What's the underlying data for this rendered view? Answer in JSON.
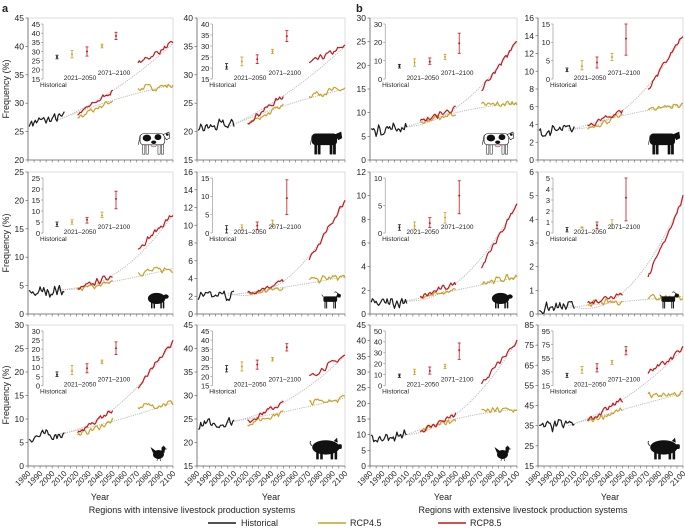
{
  "figure": {
    "panel_labels": [
      "a",
      "b"
    ],
    "ylabel": "Frequency (%)",
    "xlabel": "Year",
    "group_titles": [
      "Regions with intensive livestock production systems",
      "Regions with extensive livestock production systems"
    ],
    "inset_labels": {
      "historical": "Historical",
      "near": "2021–2050",
      "far": "2071–2100"
    },
    "legend": [
      {
        "name": "Historical",
        "color": "#1a1a1a"
      },
      {
        "name": "RCP4.5",
        "color": "#c9a227"
      },
      {
        "name": "RCP8.5",
        "color": "#c4161c"
      }
    ]
  },
  "colors": {
    "historical": "#1a1a1a",
    "rcp45": "#c9a227",
    "rcp85": "#c4161c",
    "trend": "#bdbdbd"
  },
  "x_axis": {
    "range": [
      1980,
      2100
    ],
    "tick_labels": [
      "1980",
      "1990",
      "2000",
      "2010",
      "2020",
      "2030",
      "2040",
      "2050",
      "2060",
      "2070",
      "2080",
      "2090",
      "2100"
    ]
  },
  "chart_data": [
    {
      "type": "line",
      "group": "a",
      "animal": "dairy-cattle",
      "ylim": [
        20,
        45
      ],
      "yticks": [
        20,
        25,
        30,
        35,
        40,
        45
      ],
      "historical": [
        [
          1981,
          26.5
        ],
        [
          2010,
          27.5
        ]
      ],
      "rcp45": {
        "near": [
          [
            2021,
            27.5
          ],
          [
            2050,
            30.5
          ]
        ],
        "far": [
          [
            2071,
            32.5
          ],
          [
            2100,
            33.2
          ]
        ]
      },
      "rcp85": {
        "near": [
          [
            2021,
            28
          ],
          [
            2050,
            32.2
          ]
        ],
        "far": [
          [
            2071,
            37
          ],
          [
            2100,
            40.5
          ]
        ]
      },
      "inset": {
        "ylim": [
          15,
          45
        ],
        "yticks": [
          15,
          20,
          25,
          30,
          35,
          40,
          45
        ],
        "historical": [
          27,
          26,
          28
        ],
        "rcp45_near": [
          28.5,
          26.5,
          30.5
        ],
        "rcp85_near": [
          30,
          27.5,
          32.5
        ],
        "rcp45_far": [
          33,
          32,
          34
        ],
        "rcp85_far": [
          38.5,
          36.5,
          40.5
        ]
      }
    },
    {
      "type": "line",
      "group": "a",
      "animal": "beef-cattle",
      "ylim": [
        15,
        40
      ],
      "yticks": [
        15,
        20,
        25,
        30,
        35,
        40
      ],
      "historical": [
        [
          1981,
          20.5
        ],
        [
          2010,
          21.3
        ]
      ],
      "rcp45": {
        "near": [
          [
            2021,
            21.5
          ],
          [
            2050,
            24.5
          ]
        ],
        "far": [
          [
            2071,
            26.5
          ],
          [
            2100,
            27.5
          ]
        ]
      },
      "rcp85": {
        "near": [
          [
            2021,
            21.7
          ],
          [
            2050,
            26.3
          ]
        ],
        "far": [
          [
            2071,
            32
          ],
          [
            2100,
            35
          ]
        ]
      },
      "inset": {
        "ylim": [
          15,
          40
        ],
        "yticks": [
          15,
          20,
          25,
          30,
          35,
          40
        ],
        "historical": [
          20.5,
          19.5,
          22
        ],
        "rcp45_near": [
          23,
          21,
          25
        ],
        "rcp85_near": [
          24,
          22,
          26
        ],
        "rcp45_far": [
          27.5,
          26.5,
          28.5
        ],
        "rcp85_far": [
          34.5,
          32,
          37
        ]
      }
    },
    {
      "type": "line",
      "group": "a",
      "animal": "sheep",
      "ylim": [
        0,
        25
      ],
      "yticks": [
        0,
        5,
        10,
        15,
        20,
        25
      ],
      "historical": [
        [
          1981,
          3.7
        ],
        [
          2010,
          4.3
        ]
      ],
      "rcp45": {
        "near": [
          [
            2021,
            4.3
          ],
          [
            2050,
            5.7
          ]
        ],
        "far": [
          [
            2071,
            7.3
          ],
          [
            2100,
            8
          ]
        ]
      },
      "rcp85": {
        "near": [
          [
            2021,
            4.3
          ],
          [
            2050,
            6.8
          ]
        ],
        "far": [
          [
            2071,
            11.5
          ],
          [
            2100,
            17.5
          ]
        ]
      },
      "inset": {
        "ylim": [
          0,
          25
        ],
        "yticks": [
          0,
          5,
          10,
          15,
          20,
          25
        ],
        "historical": [
          4,
          3,
          5
        ],
        "rcp45_near": [
          5,
          4,
          6
        ],
        "rcp85_near": [
          6,
          4.5,
          7
        ],
        "rcp45_far": [
          8,
          7,
          9.5
        ],
        "rcp85_far": [
          15.5,
          11,
          19
        ]
      }
    },
    {
      "type": "line",
      "group": "a",
      "animal": "goat",
      "ylim": [
        0,
        16
      ],
      "yticks": [
        0,
        2,
        4,
        6,
        8,
        10,
        12,
        14,
        16
      ],
      "historical": [
        [
          1981,
          1.8
        ],
        [
          2010,
          2.2
        ]
      ],
      "rcp45": {
        "near": [
          [
            2021,
            2.2
          ],
          [
            2050,
            3.0
          ]
        ],
        "far": [
          [
            2071,
            3.8
          ],
          [
            2100,
            4.2
          ]
        ]
      },
      "rcp85": {
        "near": [
          [
            2021,
            2.3
          ],
          [
            2050,
            3.7
          ]
        ],
        "far": [
          [
            2071,
            6
          ],
          [
            2100,
            12.8
          ]
        ]
      },
      "inset": {
        "ylim": [
          0,
          15
        ],
        "yticks": [
          0,
          5,
          10,
          15
        ],
        "historical": [
          1,
          0,
          2
        ],
        "rcp45_near": [
          1.5,
          0.8,
          2.2
        ],
        "rcp85_near": [
          2,
          1,
          3
        ],
        "rcp45_far": [
          2.5,
          1.8,
          3.5
        ],
        "rcp85_far": [
          9.5,
          5,
          14.5
        ]
      }
    },
    {
      "type": "line",
      "group": "a",
      "animal": "chicken",
      "ylim": [
        0,
        30
      ],
      "yticks": [
        0,
        5,
        10,
        15,
        20,
        25,
        30
      ],
      "historical": [
        [
          1981,
          6
        ],
        [
          2010,
          7
        ]
      ],
      "rcp45": {
        "near": [
          [
            2021,
            6.5
          ],
          [
            2050,
            9.5
          ]
        ],
        "far": [
          [
            2071,
            12.5
          ],
          [
            2100,
            13.5
          ]
        ]
      },
      "rcp85": {
        "near": [
          [
            2021,
            7
          ],
          [
            2050,
            12
          ]
        ],
        "far": [
          [
            2071,
            16.5
          ],
          [
            2100,
            26.5
          ]
        ]
      },
      "inset": {
        "ylim": [
          0,
          30
        ],
        "yticks": [
          0,
          5,
          10,
          15,
          20,
          25,
          30
        ],
        "historical": [
          6,
          5,
          7.5
        ],
        "rcp45_near": [
          8,
          6,
          11
        ],
        "rcp85_near": [
          9.5,
          7,
          12
        ],
        "rcp45_far": [
          13,
          12,
          14
        ],
        "rcp85_far": [
          20.5,
          17,
          24
        ]
      }
    },
    {
      "type": "line",
      "group": "a",
      "animal": "pig",
      "ylim": [
        15,
        45
      ],
      "yticks": [
        15,
        20,
        25,
        30,
        35,
        40,
        45
      ],
      "historical": [
        [
          1981,
          23.5
        ],
        [
          2010,
          24.5
        ]
      ],
      "rcp45": {
        "near": [
          [
            2021,
            24
          ],
          [
            2050,
            26.5
          ]
        ],
        "far": [
          [
            2071,
            28.5
          ],
          [
            2100,
            29.5
          ]
        ]
      },
      "rcp85": {
        "near": [
          [
            2021,
            24.5
          ],
          [
            2050,
            28.5
          ]
        ],
        "far": [
          [
            2071,
            34
          ],
          [
            2100,
            38.5
          ]
        ]
      },
      "inset": {
        "ylim": [
          15,
          45
        ],
        "yticks": [
          15,
          20,
          25,
          30,
          35,
          40,
          45
        ],
        "historical": [
          24,
          22.5,
          26
        ],
        "rcp45_near": [
          25.5,
          23,
          28
        ],
        "rcp85_near": [
          26.5,
          24,
          29
        ],
        "rcp45_far": [
          29.5,
          28.5,
          30.5
        ],
        "rcp85_far": [
          36,
          34,
          38
        ]
      }
    },
    {
      "type": "line",
      "group": "b",
      "animal": "dairy-cattle",
      "ylim": [
        0,
        30
      ],
      "yticks": [
        0,
        5,
        10,
        15,
        20,
        25,
        30
      ],
      "historical": [
        [
          1981,
          6.3
        ],
        [
          2010,
          7
        ]
      ],
      "rcp45": {
        "near": [
          [
            2021,
            7.8
          ],
          [
            2050,
            10
          ]
        ],
        "far": [
          [
            2071,
            11.5
          ],
          [
            2100,
            12
          ]
        ]
      },
      "rcp85": {
        "near": [
          [
            2021,
            8
          ],
          [
            2050,
            11
          ]
        ],
        "far": [
          [
            2071,
            15
          ],
          [
            2100,
            25
          ]
        ]
      },
      "inset": {
        "ylim": [
          0,
          30
        ],
        "yticks": [
          0,
          10,
          20,
          30
        ],
        "historical": [
          7,
          6,
          8
        ],
        "rcp45_near": [
          9,
          7,
          11
        ],
        "rcp85_near": [
          9.5,
          8,
          11.5
        ],
        "rcp45_far": [
          12,
          10.5,
          13.5
        ],
        "rcp85_far": [
          19.5,
          14,
          25
        ]
      }
    },
    {
      "type": "line",
      "group": "b",
      "animal": "beef-cattle",
      "ylim": [
        0,
        16
      ],
      "yticks": [
        0,
        2,
        4,
        6,
        8,
        10,
        12,
        14,
        16
      ],
      "historical": [
        [
          1981,
          3
        ],
        [
          2010,
          3.5
        ]
      ],
      "rcp45": {
        "near": [
          [
            2021,
            3.6
          ],
          [
            2050,
            5
          ]
        ],
        "far": [
          [
            2071,
            5.8
          ],
          [
            2100,
            6.2
          ]
        ]
      },
      "rcp85": {
        "near": [
          [
            2021,
            3.8
          ],
          [
            2050,
            5.6
          ]
        ],
        "far": [
          [
            2071,
            8
          ],
          [
            2100,
            14
          ]
        ]
      },
      "inset": {
        "ylim": [
          0,
          15
        ],
        "yticks": [
          0,
          5,
          10,
          15
        ],
        "historical": [
          2.5,
          2,
          3
        ],
        "rcp45_near": [
          3.5,
          2.5,
          5
        ],
        "rcp85_near": [
          4.5,
          3,
          6
        ],
        "rcp45_far": [
          6,
          5,
          7
        ],
        "rcp85_far": [
          11,
          6.5,
          15
        ]
      }
    },
    {
      "type": "line",
      "group": "b",
      "animal": "sheep",
      "ylim": [
        0,
        12
      ],
      "yticks": [
        0,
        2,
        4,
        6,
        8,
        10,
        12
      ],
      "historical": [
        [
          1981,
          0.8
        ],
        [
          2010,
          1.1
        ]
      ],
      "rcp45": {
        "near": [
          [
            2021,
            1.4
          ],
          [
            2050,
            2.0
          ]
        ],
        "far": [
          [
            2071,
            2.7
          ],
          [
            2100,
            3.1
          ]
        ]
      },
      "rcp85": {
        "near": [
          [
            2021,
            1.4
          ],
          [
            2050,
            2.6
          ]
        ],
        "far": [
          [
            2071,
            4
          ],
          [
            2100,
            9.3
          ]
        ]
      },
      "inset": {
        "ylim": [
          0,
          10
        ],
        "yticks": [
          0,
          5,
          10
        ],
        "historical": [
          1,
          0.5,
          1.5
        ],
        "rcp45_near": [
          1.3,
          0.7,
          2
        ],
        "rcp85_near": [
          1.8,
          1,
          2.8
        ],
        "rcp45_far": [
          2.8,
          1.8,
          3.7
        ],
        "rcp85_far": [
          6.8,
          3.5,
          9.5
        ]
      }
    },
    {
      "type": "line",
      "group": "b",
      "animal": "goat",
      "ylim": [
        0,
        6
      ],
      "yticks": [
        0,
        1,
        2,
        3,
        4,
        5,
        6
      ],
      "historical": [
        [
          1981,
          0.2
        ],
        [
          2010,
          0.3
        ]
      ],
      "rcp45": {
        "near": [
          [
            2021,
            0.45
          ],
          [
            2050,
            0.52
          ]
        ],
        "far": [
          [
            2071,
            0.7
          ],
          [
            2100,
            0.75
          ]
        ]
      },
      "rcp85": {
        "near": [
          [
            2021,
            0.45
          ],
          [
            2050,
            0.9
          ]
        ],
        "far": [
          [
            2071,
            1.5
          ],
          [
            2100,
            4.9
          ]
        ]
      },
      "inset": {
        "ylim": [
          0,
          5
        ],
        "yticks": [
          0,
          1,
          2,
          3,
          4,
          5
        ],
        "historical": [
          0.3,
          0.1,
          0.5
        ],
        "rcp45_near": [
          0.5,
          0.45,
          0.55
        ],
        "rcp85_near": [
          0.7,
          0.4,
          1
        ],
        "rcp45_far": [
          0.8,
          0.4,
          1.2
        ],
        "rcp85_far": [
          3.2,
          1.1,
          5
        ]
      }
    },
    {
      "type": "line",
      "group": "b",
      "animal": "chicken",
      "ylim": [
        0,
        45
      ],
      "yticks": [
        0,
        5,
        10,
        15,
        20,
        25,
        30,
        35,
        40,
        45
      ],
      "historical": [
        [
          1981,
          8.8
        ],
        [
          2010,
          10
        ]
      ],
      "rcp45": {
        "near": [
          [
            2021,
            11
          ],
          [
            2050,
            15
          ]
        ],
        "far": [
          [
            2071,
            17.5
          ],
          [
            2100,
            18
          ]
        ]
      },
      "rcp85": {
        "near": [
          [
            2021,
            11
          ],
          [
            2050,
            16.5
          ]
        ],
        "far": [
          [
            2071,
            26
          ],
          [
            2100,
            40
          ]
        ]
      },
      "inset": {
        "ylim": [
          0,
          50
        ],
        "yticks": [
          0,
          10,
          20,
          30,
          40,
          50
        ],
        "historical": [
          9,
          7.5,
          10.5
        ],
        "rcp45_near": [
          12.5,
          10,
          15
        ],
        "rcp85_near": [
          13.5,
          10.5,
          17
        ],
        "rcp45_far": [
          17.5,
          15.5,
          19.5
        ],
        "rcp85_far": [
          32.5,
          24,
          39
        ]
      }
    },
    {
      "type": "line",
      "group": "b",
      "animal": "pig",
      "ylim": [
        15,
        85
      ],
      "yticks": [
        15,
        25,
        35,
        45,
        55,
        65,
        75,
        85
      ],
      "historical": [
        [
          1981,
          34
        ],
        [
          2010,
          36
        ]
      ],
      "rcp45": {
        "near": [
          [
            2021,
            37
          ],
          [
            2050,
            43
          ]
        ],
        "far": [
          [
            2071,
            50
          ],
          [
            2100,
            51
          ]
        ]
      },
      "rcp85": {
        "near": [
          [
            2021,
            37
          ],
          [
            2050,
            48
          ]
        ],
        "far": [
          [
            2071,
            61
          ],
          [
            2100,
            73
          ]
        ]
      },
      "inset": {
        "ylim": [
          15,
          95
        ],
        "yticks": [
          15,
          35,
          55,
          75,
          95
        ],
        "historical": [
          30,
          27,
          33
        ],
        "rcp45_near": [
          38,
          33,
          43
        ],
        "rcp85_near": [
          40,
          35,
          47
        ],
        "rcp45_far": [
          49,
          46,
          52
        ],
        "rcp85_far": [
          66,
          60,
          72
        ]
      }
    }
  ]
}
